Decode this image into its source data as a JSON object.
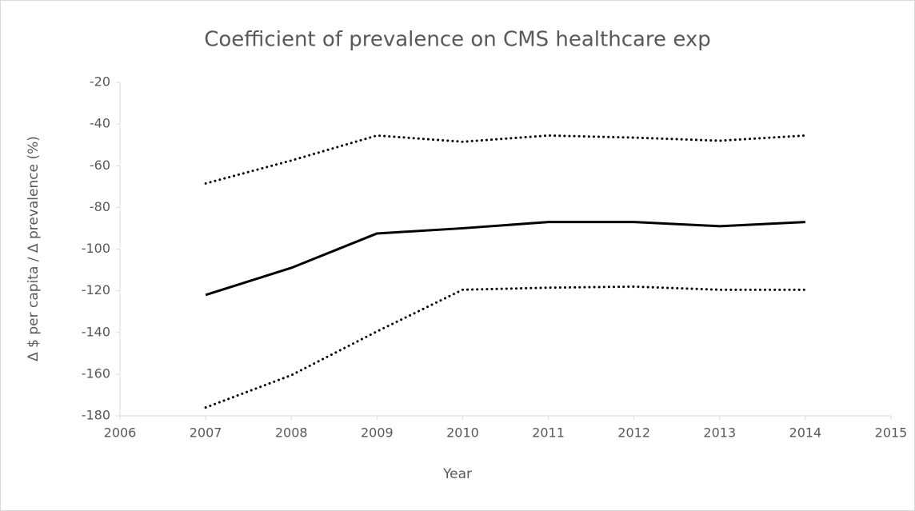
{
  "chart_data": {
    "type": "line",
    "title": "Coefficient of prevalence on CMS healthcare exp",
    "x_label": "Year",
    "y_label": "Δ $ per capita / Δ prevalence (%)",
    "x": [
      2007,
      2008,
      2009,
      2010,
      2011,
      2012,
      2013,
      2014
    ],
    "series": [
      {
        "color": "#000000",
        "style": "solid",
        "values": [
          -122,
          -109,
          -92.5,
          -90,
          -87,
          -87,
          -89,
          -87
        ]
      },
      {
        "color": "#000000",
        "style": "dotted",
        "values": [
          -68.5,
          -57.5,
          -45.5,
          -48.5,
          -45.5,
          -46.5,
          -48,
          -45.5
        ]
      },
      {
        "color": "#000000",
        "style": "dotted",
        "values": [
          -176,
          -160.5,
          -139.5,
          -119.5,
          -118.5,
          -118,
          -119.5,
          -119.5
        ]
      }
    ],
    "xlim": [
      2006,
      2015
    ],
    "xticks": [
      2006,
      2007,
      2008,
      2009,
      2010,
      2011,
      2012,
      2013,
      2014,
      2015
    ],
    "ylim": [
      -180,
      -20
    ],
    "yticks": [
      -180,
      -160,
      -140,
      -120,
      -100,
      -80,
      -60,
      -40,
      -20
    ],
    "grid": false
  }
}
